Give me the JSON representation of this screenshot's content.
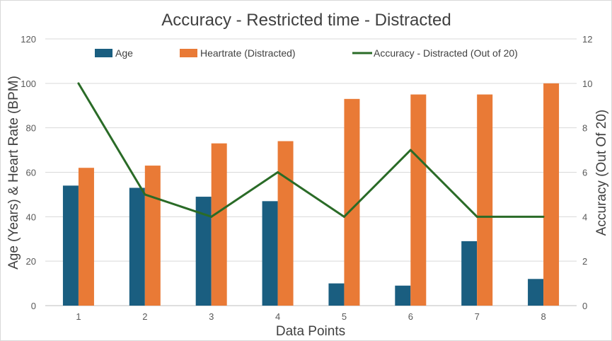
{
  "chart_data": {
    "type": "bar",
    "title": "Accuracy - Restricted time - Distracted",
    "xlabel": "Data Points",
    "ylabel": "Age (Years) & Heart Rate (BPM)",
    "y2label": "Accuracy (Out Of 20)",
    "categories": [
      "1",
      "2",
      "3",
      "4",
      "5",
      "6",
      "7",
      "8"
    ],
    "ylim": [
      0,
      120
    ],
    "y_ticks": [
      "0",
      "20",
      "40",
      "60",
      "80",
      "100",
      "120"
    ],
    "y2lim": [
      0,
      12
    ],
    "y2_ticks": [
      "0",
      "2",
      "4",
      "6",
      "8",
      "10",
      "12"
    ],
    "grid": true,
    "legend_position": "top",
    "series": [
      {
        "name": "Age",
        "type": "bar",
        "axis": "left",
        "color": "#1a5e80",
        "values": [
          54,
          53,
          49,
          47,
          10,
          9,
          29,
          12
        ]
      },
      {
        "name": "Heartrate (Distracted)",
        "type": "bar",
        "axis": "left",
        "color": "#e97a36",
        "values": [
          62,
          63,
          73,
          74,
          93,
          95,
          95,
          100
        ]
      },
      {
        "name": "Accuracy - Distracted (Out of 20)",
        "type": "line",
        "axis": "right",
        "color": "#2a6b27",
        "values": [
          10,
          5,
          4,
          6,
          4,
          7,
          4,
          4
        ]
      }
    ]
  }
}
